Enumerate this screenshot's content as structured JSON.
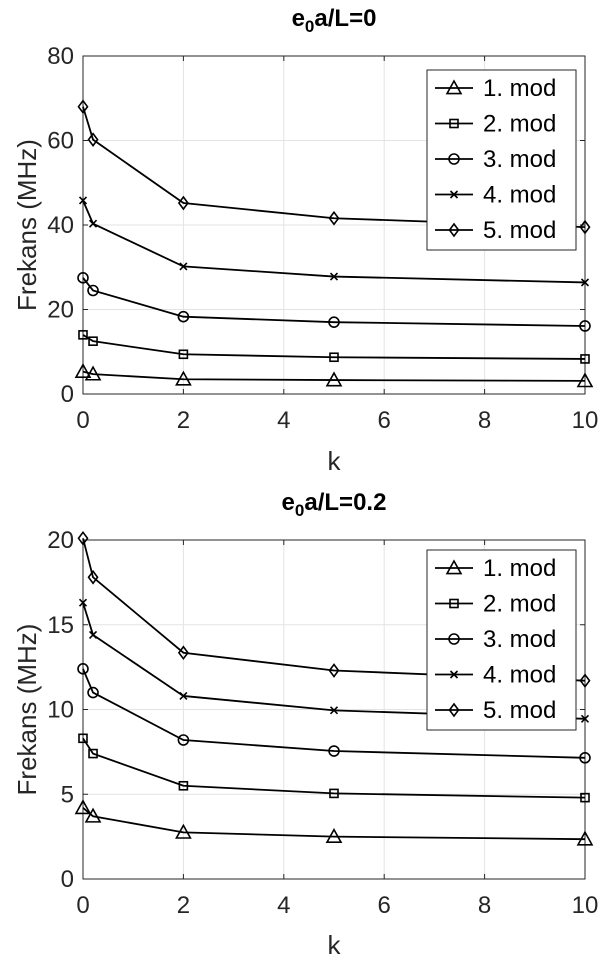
{
  "chart_data": [
    {
      "type": "line",
      "title_main": "e",
      "title_sub": "0",
      "title_rest": "a/L=0",
      "xlabel": "k",
      "ylabel": "Frekans (MHz)",
      "xlim": [
        0,
        10
      ],
      "ylim": [
        0,
        80
      ],
      "xticks": [
        0,
        2,
        4,
        6,
        8,
        10
      ],
      "yticks": [
        0,
        20,
        40,
        60,
        80
      ],
      "xtick_labels": [
        "0",
        "2",
        "4",
        "6",
        "8",
        "10"
      ],
      "ytick_labels": [
        "0",
        "20",
        "40",
        "60",
        "80"
      ],
      "grid": true,
      "legend_position": "top-right",
      "x": [
        0,
        0.2,
        2,
        5,
        10
      ],
      "series": [
        {
          "name": "1. mod",
          "marker": "triangle",
          "values": [
            5.3,
            4.7,
            3.5,
            3.3,
            3.1
          ]
        },
        {
          "name": "2. mod",
          "marker": "square",
          "values": [
            14.0,
            12.5,
            9.4,
            8.7,
            8.3
          ]
        },
        {
          "name": "3. mod",
          "marker": "circle",
          "values": [
            27.5,
            24.5,
            18.3,
            17.0,
            16.1
          ]
        },
        {
          "name": "4. mod",
          "marker": "x",
          "values": [
            45.8,
            40.3,
            30.2,
            27.8,
            26.4
          ]
        },
        {
          "name": "5. mod",
          "marker": "diamond",
          "values": [
            68.0,
            60.2,
            45.2,
            41.6,
            39.5
          ]
        }
      ]
    },
    {
      "type": "line",
      "title_main": "e",
      "title_sub": "0",
      "title_rest": "a/L=0.2",
      "xlabel": "k",
      "ylabel": "Frekans (MHz)",
      "xlim": [
        0,
        10
      ],
      "ylim": [
        0,
        20
      ],
      "xticks": [
        0,
        2,
        4,
        6,
        8,
        10
      ],
      "yticks": [
        0,
        5,
        10,
        15,
        20
      ],
      "xtick_labels": [
        "0",
        "2",
        "4",
        "6",
        "8",
        "10"
      ],
      "ytick_labels": [
        "0",
        "5",
        "10",
        "15",
        "20"
      ],
      "grid": true,
      "legend_position": "top-right",
      "x": [
        0,
        0.2,
        2,
        5,
        10
      ],
      "series": [
        {
          "name": "1. mod",
          "marker": "triangle",
          "values": [
            4.2,
            3.7,
            2.75,
            2.5,
            2.35
          ]
        },
        {
          "name": "2. mod",
          "marker": "square",
          "values": [
            8.3,
            7.4,
            5.5,
            5.05,
            4.8
          ]
        },
        {
          "name": "3. mod",
          "marker": "circle",
          "values": [
            12.4,
            11.0,
            8.2,
            7.55,
            7.15
          ]
        },
        {
          "name": "4. mod",
          "marker": "x",
          "values": [
            16.3,
            14.4,
            10.8,
            9.95,
            9.45
          ]
        },
        {
          "name": "5. mod",
          "marker": "diamond",
          "values": [
            20.1,
            17.8,
            13.35,
            12.3,
            11.7
          ]
        }
      ]
    }
  ]
}
